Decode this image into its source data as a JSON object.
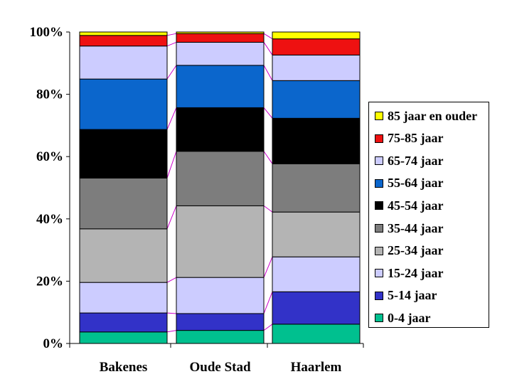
{
  "chart_data": {
    "type": "bar",
    "stacked": true,
    "categories": [
      "Bakenes",
      "Oude Stad",
      "Haarlem"
    ],
    "ylim": [
      0,
      100
    ],
    "yticks": [
      "0%",
      "20%",
      "40%",
      "60%",
      "80%",
      "100%"
    ],
    "series": [
      {
        "name": "0-4 jaar",
        "color": "#00c08f",
        "values": [
          3.7,
          4.2,
          6.2
        ]
      },
      {
        "name": "5-14 jaar",
        "color": "#3232c8",
        "values": [
          6.1,
          5.4,
          10.4
        ]
      },
      {
        "name": "15-24 jaar",
        "color": "#ccccff",
        "values": [
          9.8,
          11.6,
          11.2
        ]
      },
      {
        "name": "25-34 jaar",
        "color": "#b4b4b4",
        "values": [
          17.2,
          23.0,
          14.4
        ]
      },
      {
        "name": "35-44 jaar",
        "color": "#7d7d7d",
        "values": [
          16.3,
          17.5,
          15.5
        ]
      },
      {
        "name": "45-54 jaar",
        "color": "#000000",
        "values": [
          15.6,
          14.0,
          14.6
        ]
      },
      {
        "name": "55-64 jaar",
        "color": "#0b66cc",
        "values": [
          16.2,
          13.6,
          12.1
        ]
      },
      {
        "name": "65-74 jaar",
        "color": "#ccccff",
        "values": [
          10.6,
          7.4,
          8.2
        ]
      },
      {
        "name": "75-85 jaar",
        "color": "#ee1111",
        "values": [
          3.4,
          2.8,
          5.2
        ]
      },
      {
        "name": "85 jaar en ouder",
        "color": "#ffff00",
        "values": [
          1.1,
          0.5,
          2.2
        ]
      }
    ],
    "connector_color": "#cc00cc",
    "legend_position": "right"
  }
}
